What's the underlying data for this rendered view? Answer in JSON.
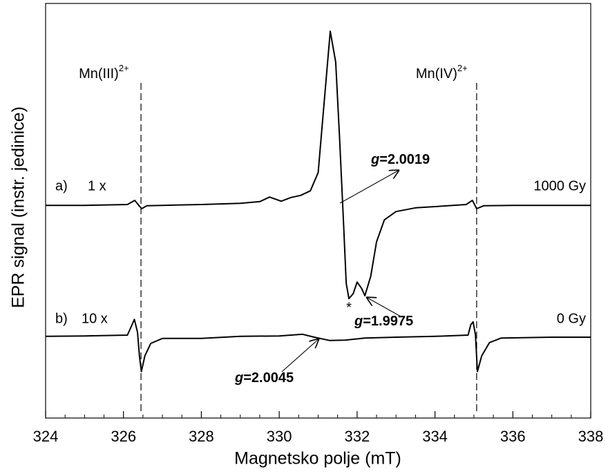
{
  "chart_data": {
    "type": "line",
    "xlabel": "Magnetsko polje (mT)",
    "ylabel": "EPR signal (instr. jedinice)",
    "xlim": [
      324,
      338
    ],
    "xticks": [
      324,
      326,
      328,
      330,
      332,
      334,
      336,
      338
    ],
    "xminor_ticks": [
      324.5,
      325,
      325.5,
      326.5,
      327,
      327.5,
      328.5,
      329,
      329.5,
      330.5,
      331,
      331.5,
      332.5,
      333,
      333.5,
      334.5,
      335,
      335.5,
      336.5,
      337,
      337.5
    ],
    "ylim": [
      0,
      100
    ],
    "series": [
      {
        "name": "a)",
        "factor": "1 x",
        "dose": "1000 Gy",
        "color": "#000000",
        "x": [
          324,
          325,
          326.1,
          326.29,
          326.4,
          326.47,
          326.6,
          327,
          328,
          329,
          329.5,
          329.75,
          330.05,
          330.3,
          330.55,
          330.8,
          331.0,
          331.15,
          331.31,
          331.45,
          331.55,
          331.65,
          331.72,
          331.79,
          331.9,
          332.0,
          332.12,
          332.2,
          332.35,
          332.5,
          332.7,
          333.0,
          333.5,
          334,
          334.8,
          334.96,
          335.07,
          335.25,
          336,
          337,
          338
        ],
        "values": [
          51.3,
          51.3,
          51.5,
          52.5,
          51.2,
          50.5,
          51.2,
          51.3,
          51.5,
          51.8,
          52.2,
          53.3,
          52.3,
          53.2,
          53.7,
          54.8,
          59.2,
          75.8,
          93.3,
          85.8,
          67.5,
          47.5,
          32.5,
          28.8,
          30,
          32.8,
          31.2,
          29.5,
          34.2,
          42.5,
          47.8,
          49.8,
          50.7,
          51,
          51.5,
          52.5,
          50.5,
          51.2,
          51.3,
          51.3,
          51.3
        ]
      },
      {
        "name": "b)",
        "factor": "10 x",
        "dose": "0 Gy",
        "color": "#000000",
        "x": [
          324,
          325,
          326.1,
          326.22,
          326.28,
          326.36,
          326.41,
          326.46,
          326.55,
          326.7,
          327,
          328,
          329,
          330,
          330.6,
          330.9,
          331.3,
          331.7,
          332.2,
          333,
          334,
          334.85,
          334.92,
          334.98,
          335.04,
          335.09,
          335.2,
          335.4,
          335.7,
          337,
          338
        ],
        "values": [
          19.7,
          19.8,
          20,
          22.5,
          23.8,
          20.7,
          15,
          11.2,
          15,
          18,
          19.2,
          19.2,
          19.7,
          19.8,
          20.2,
          19.5,
          18.7,
          18.8,
          19.3,
          19.5,
          19.7,
          20,
          22.5,
          23.2,
          20,
          11.2,
          15,
          18.2,
          19.3,
          19.5,
          19.5
        ]
      }
    ],
    "reference_lines": [
      {
        "x": 326.45,
        "label": "Mn(III)",
        "superscript": "2+"
      },
      {
        "x": 335.07,
        "label": "Mn(IV)",
        "superscript": "2+"
      }
    ],
    "annotations": [
      {
        "symbol": "g",
        "text": "=2.0019"
      },
      {
        "symbol": "g",
        "text": "=1.9975"
      },
      {
        "symbol": "g",
        "text": "=2.0045"
      },
      {
        "text": "*"
      }
    ]
  }
}
